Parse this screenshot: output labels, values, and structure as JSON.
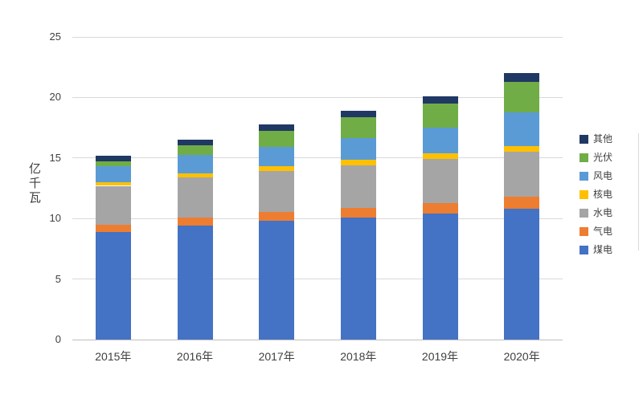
{
  "chart_data": {
    "type": "bar",
    "stacked": true,
    "title": "",
    "xlabel": "",
    "ylabel": "亿千瓦",
    "ylim": [
      0,
      25
    ],
    "yticks": [
      0,
      5,
      10,
      15,
      20,
      25
    ],
    "grid": true,
    "categories": [
      "2015年",
      "2016年",
      "2017年",
      "2018年",
      "2019年",
      "2020年"
    ],
    "series": [
      {
        "name": "煤电",
        "color": "#4472C4",
        "values": [
          8.9,
          9.4,
          9.8,
          10.1,
          10.4,
          10.8
        ]
      },
      {
        "name": "气电",
        "color": "#ED7D31",
        "values": [
          0.6,
          0.7,
          0.75,
          0.8,
          0.9,
          1.0
        ]
      },
      {
        "name": "水电",
        "color": "#A5A5A5",
        "values": [
          3.2,
          3.3,
          3.4,
          3.5,
          3.6,
          3.7
        ]
      },
      {
        "name": "核电",
        "color": "#FFC000",
        "values": [
          0.3,
          0.34,
          0.36,
          0.45,
          0.49,
          0.5
        ]
      },
      {
        "name": "风电",
        "color": "#5B9BD5",
        "values": [
          1.3,
          1.5,
          1.6,
          1.8,
          2.1,
          2.8
        ]
      },
      {
        "name": "光伏",
        "color": "#70AD47",
        "values": [
          0.45,
          0.8,
          1.3,
          1.7,
          2.0,
          2.5
        ]
      },
      {
        "name": "其他",
        "color": "#203864",
        "values": [
          0.45,
          0.46,
          0.59,
          0.55,
          0.61,
          0.7
        ]
      }
    ],
    "legend": {
      "position": "right",
      "order_top_to_bottom": [
        "其他",
        "光伏",
        "风电",
        "核电",
        "水电",
        "气电",
        "煤电"
      ]
    }
  },
  "colors": {
    "background": "#FFFFFF",
    "gridline": "#D9D9D9",
    "axis_line": "#BFBFBF",
    "axis_text": "#404040"
  }
}
